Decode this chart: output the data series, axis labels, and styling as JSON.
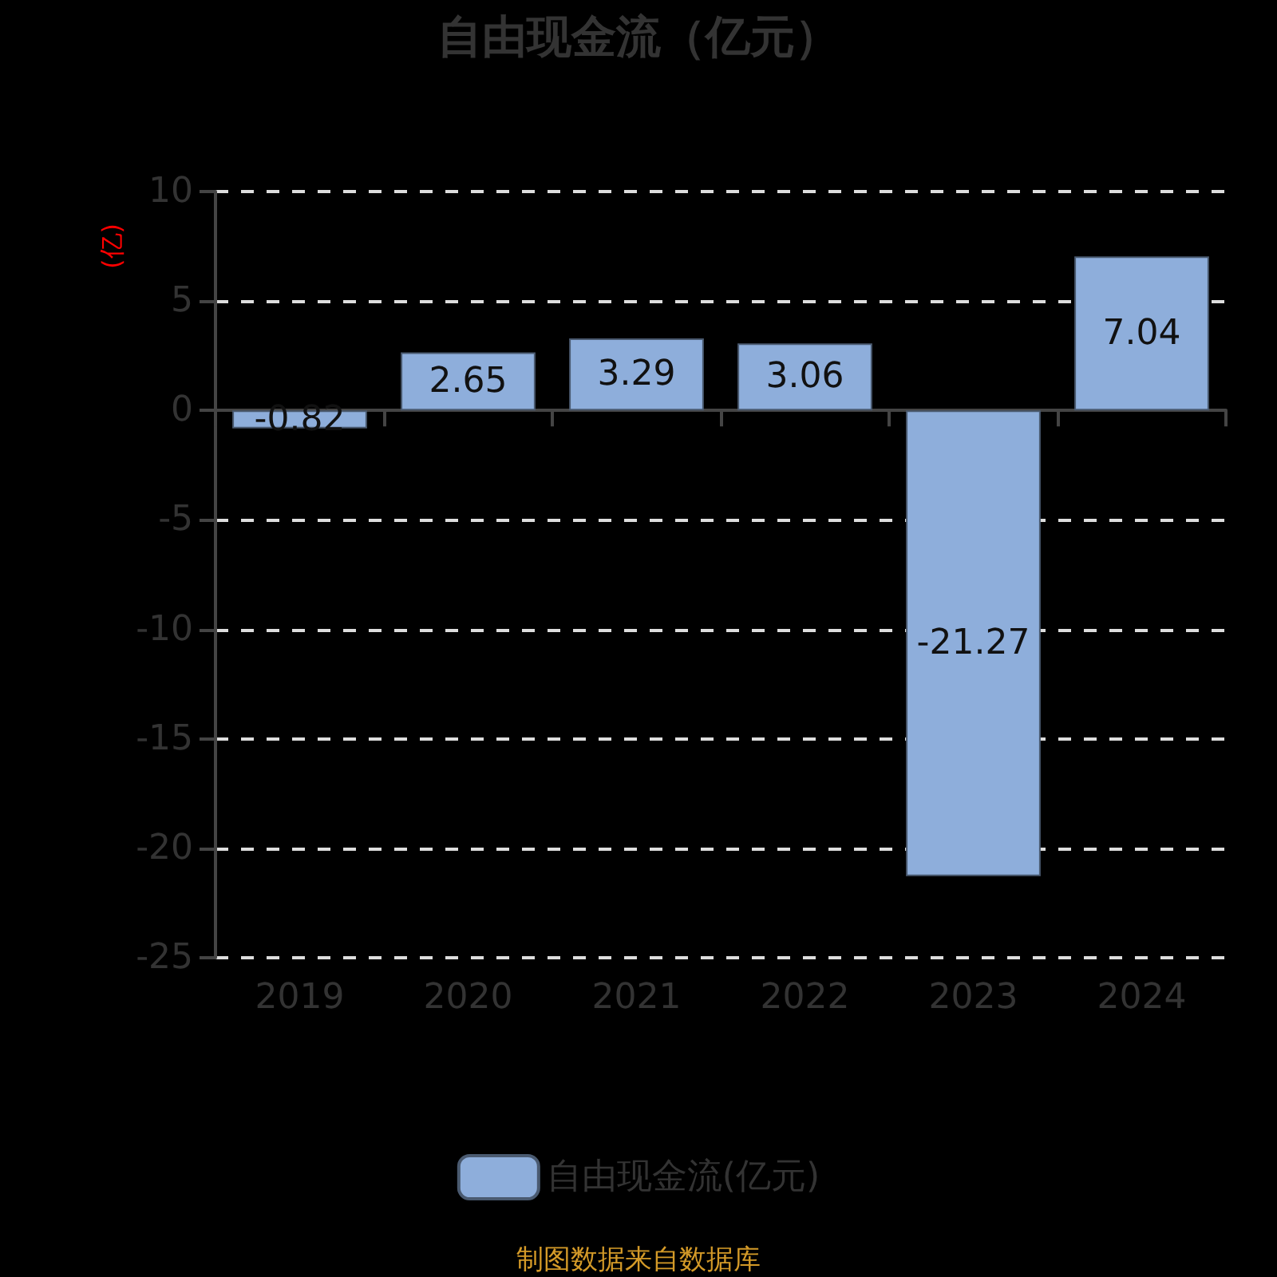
{
  "chart_data": {
    "type": "bar",
    "title": "自由现金流（亿元）",
    "ylabel": "(亿)",
    "categories": [
      "2019",
      "2020",
      "2021",
      "2022",
      "2023",
      "2024"
    ],
    "series": [
      {
        "name": "自由现金流(亿元)",
        "color": "#8eaedb",
        "values": [
          -0.82,
          2.65,
          3.29,
          3.06,
          -21.27,
          7.04
        ]
      }
    ],
    "ylim": [
      -25,
      10
    ],
    "yticks": [
      -25,
      -20,
      -15,
      -10,
      -5,
      0,
      5,
      10
    ],
    "grid": "y",
    "legend": "bottom",
    "data_labels": true,
    "annotations": [
      "制图数据来自数据库"
    ]
  }
}
